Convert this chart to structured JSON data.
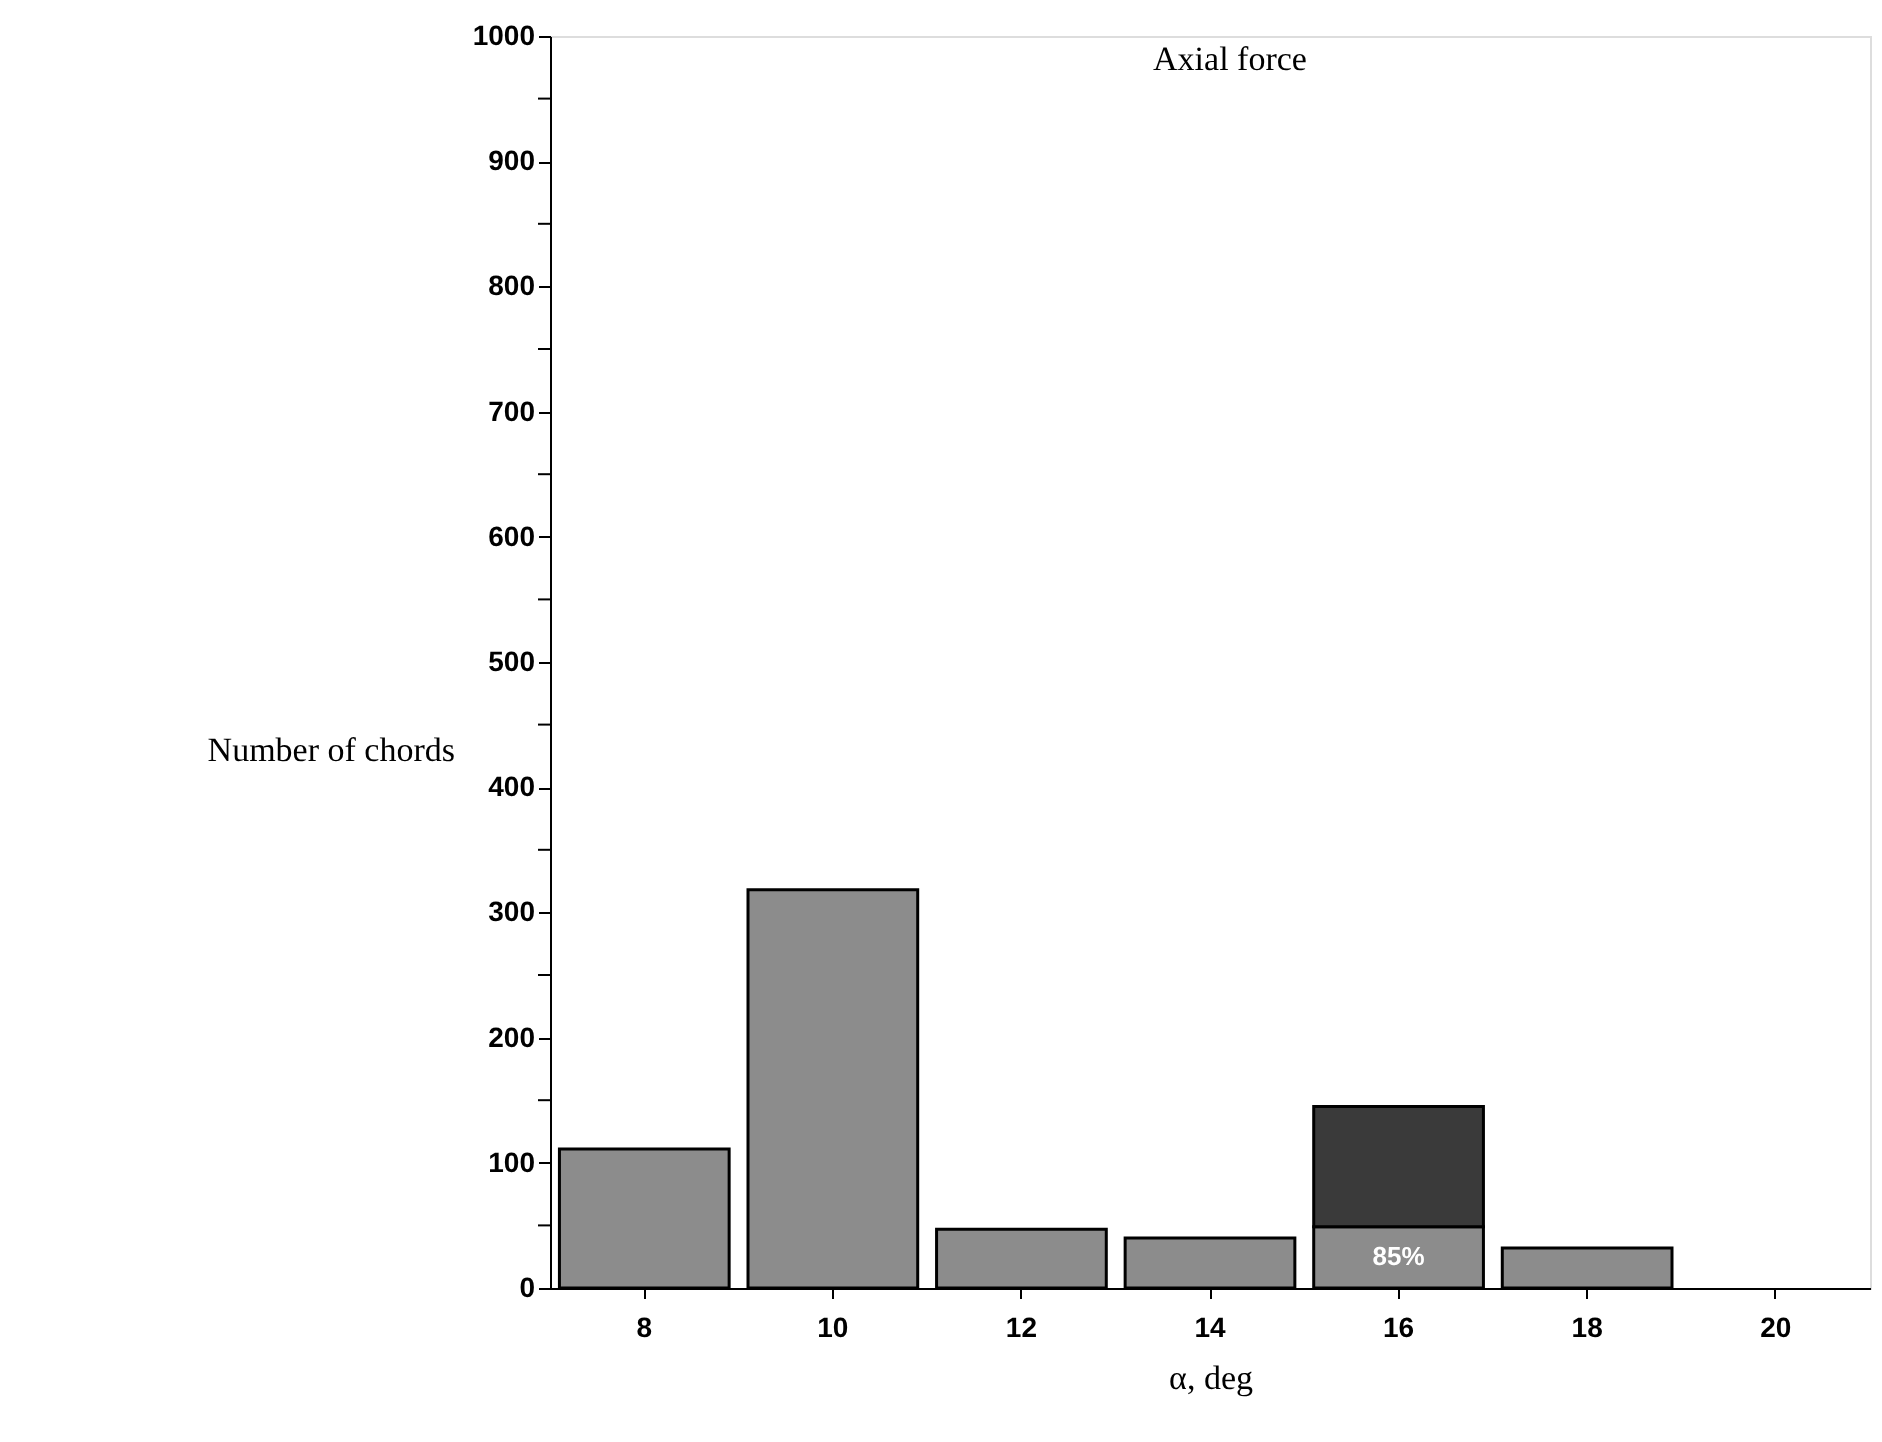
{
  "chart_data": {
    "type": "bar",
    "title": "Axial force",
    "xlabel": "α, deg",
    "ylabel": "Number of chords",
    "categories": [
      "8",
      "10",
      "12",
      "14",
      "16",
      "18",
      "20"
    ],
    "stacked": true,
    "series": [
      {
        "color": "#8c8c8c",
        "values": [
          111,
          318,
          47,
          40,
          49,
          32,
          null
        ]
      },
      {
        "color": "#3a3a3a",
        "values": [
          null,
          null,
          null,
          null,
          96,
          null,
          null
        ]
      }
    ],
    "annotations": [
      "85%"
    ],
    "ylim": [
      0,
      1000
    ],
    "yticks": [
      0,
      {
        "value": 50,
        "label": null
      },
      100,
      {
        "value": 150,
        "label": null
      },
      200,
      {
        "value": 250,
        "label": null
      },
      300,
      {
        "value": 350,
        "label": null
      },
      400,
      {
        "value": 450,
        "label": null
      },
      500,
      {
        "value": 550,
        "label": null
      },
      600,
      {
        "value": 650,
        "label": null
      },
      700,
      {
        "value": 750,
        "label": null
      },
      800,
      {
        "value": 850,
        "label": null
      },
      900,
      {
        "value": 950,
        "label": null
      },
      1000
    ],
    "grid": false,
    "legend": false
  }
}
